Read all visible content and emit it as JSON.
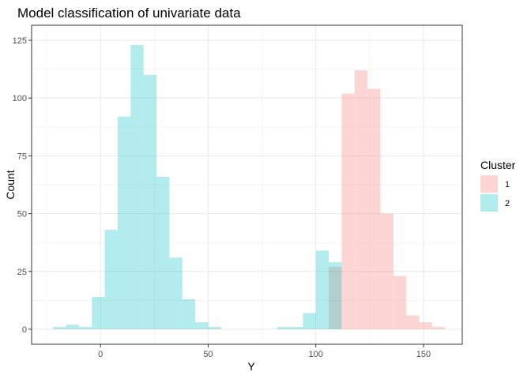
{
  "chart_data": {
    "type": "histogram",
    "title": "Model classification of univariate data",
    "xlabel": "Y",
    "ylabel": "Count",
    "xlim": [
      -32,
      168
    ],
    "ylim": [
      -6.5,
      131.5
    ],
    "x_ticks": [
      0,
      50,
      100,
      150
    ],
    "y_ticks": [
      0,
      25,
      50,
      75,
      100,
      125
    ],
    "grid": true,
    "legend": {
      "title": "Cluster",
      "position": "right"
    },
    "series": [
      {
        "name": "1",
        "color": "#F8766D",
        "bins": [
          {
            "x0": 106,
            "x1": 112,
            "count": 27
          },
          {
            "x0": 112,
            "x1": 118,
            "count": 102
          },
          {
            "x0": 118,
            "x1": 124,
            "count": 112
          },
          {
            "x0": 124,
            "x1": 130,
            "count": 104
          },
          {
            "x0": 130,
            "x1": 136,
            "count": 50
          },
          {
            "x0": 136,
            "x1": 142,
            "count": 23
          },
          {
            "x0": 142,
            "x1": 148,
            "count": 6
          },
          {
            "x0": 148,
            "x1": 154,
            "count": 3
          },
          {
            "x0": 154,
            "x1": 160,
            "count": 1
          }
        ]
      },
      {
        "name": "2",
        "color": "#00BFC4",
        "bins": [
          {
            "x0": -22,
            "x1": -16,
            "count": 1
          },
          {
            "x0": -16,
            "x1": -10,
            "count": 2
          },
          {
            "x0": -10,
            "x1": -4,
            "count": 1
          },
          {
            "x0": -4,
            "x1": 2,
            "count": 14
          },
          {
            "x0": 2,
            "x1": 8,
            "count": 43
          },
          {
            "x0": 8,
            "x1": 14,
            "count": 92
          },
          {
            "x0": 14,
            "x1": 20,
            "count": 123
          },
          {
            "x0": 20,
            "x1": 26,
            "count": 110
          },
          {
            "x0": 26,
            "x1": 32,
            "count": 66
          },
          {
            "x0": 32,
            "x1": 38,
            "count": 31
          },
          {
            "x0": 38,
            "x1": 44,
            "count": 13
          },
          {
            "x0": 44,
            "x1": 50,
            "count": 3
          },
          {
            "x0": 50,
            "x1": 56,
            "count": 1
          },
          {
            "x0": 82,
            "x1": 88,
            "count": 1
          },
          {
            "x0": 88,
            "x1": 94,
            "count": 1
          },
          {
            "x0": 94,
            "x1": 100,
            "count": 7
          },
          {
            "x0": 100,
            "x1": 106,
            "count": 34
          },
          {
            "x0": 106,
            "x1": 112,
            "count": 29
          }
        ]
      }
    ]
  }
}
